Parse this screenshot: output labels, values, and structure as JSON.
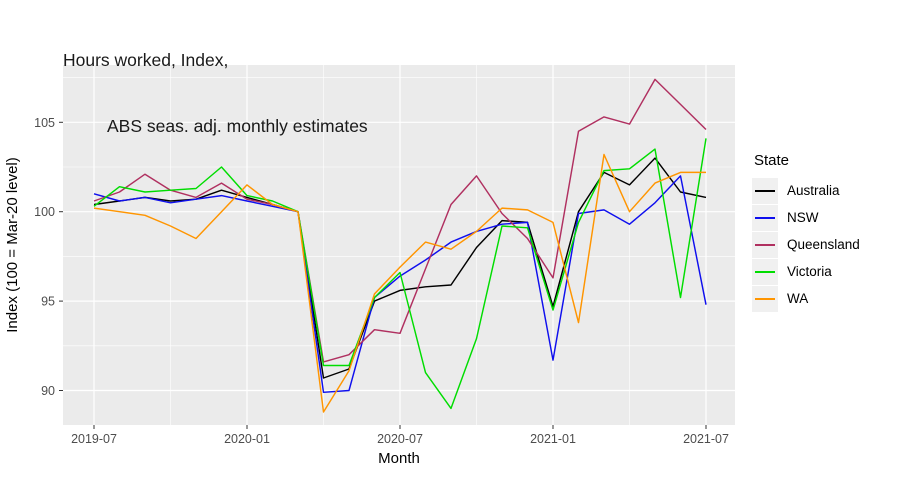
{
  "title": {
    "line1": "Hours worked, Index,",
    "line2": "ABS seas. adj. monthly estimates"
  },
  "chart_data": {
    "type": "line",
    "x": [
      "2019-07",
      "2019-08",
      "2019-09",
      "2019-10",
      "2019-11",
      "2019-12",
      "2020-01",
      "2020-02",
      "2020-03",
      "2020-04",
      "2020-05",
      "2020-06",
      "2020-07",
      "2020-08",
      "2020-09",
      "2020-10",
      "2020-11",
      "2020-12",
      "2021-01",
      "2021-02",
      "2021-03",
      "2021-04",
      "2021-05",
      "2021-06",
      "2021-07"
    ],
    "series": [
      {
        "name": "Australia",
        "color": "#000000",
        "values": [
          100.4,
          100.6,
          100.8,
          100.6,
          100.7,
          101.2,
          100.8,
          100.4,
          100.0,
          90.7,
          91.2,
          95.0,
          95.6,
          95.8,
          95.9,
          98.0,
          99.5,
          99.4,
          94.7,
          100.0,
          102.2,
          101.5,
          103.0,
          101.1,
          100.8
        ]
      },
      {
        "name": "NSW",
        "color": "#0f0fee",
        "values": [
          101.0,
          100.6,
          100.8,
          100.5,
          100.7,
          100.9,
          100.6,
          100.3,
          100.0,
          89.9,
          90.0,
          95.2,
          96.4,
          97.3,
          98.3,
          98.9,
          99.3,
          99.4,
          91.7,
          99.9,
          100.1,
          99.3,
          100.5,
          102.0,
          94.8
        ]
      },
      {
        "name": "Queensland",
        "color": "#b03060",
        "values": [
          100.6,
          101.1,
          102.1,
          101.2,
          100.8,
          101.6,
          100.7,
          100.4,
          100.0,
          91.6,
          92.0,
          93.4,
          93.2,
          96.8,
          100.4,
          102.0,
          99.9,
          98.5,
          96.3,
          104.5,
          105.3,
          104.9,
          107.4,
          106.0,
          104.6
        ]
      },
      {
        "name": "Victoria",
        "color": "#00dd00",
        "values": [
          100.3,
          101.4,
          101.1,
          101.2,
          101.3,
          102.5,
          100.9,
          100.6,
          100.0,
          91.4,
          91.4,
          95.2,
          96.6,
          91.0,
          89.0,
          92.9,
          99.2,
          99.1,
          94.5,
          99.4,
          102.3,
          102.4,
          103.5,
          95.2,
          104.1
        ]
      },
      {
        "name": "WA",
        "color": "#ff9500",
        "values": [
          100.2,
          100.0,
          99.8,
          99.2,
          98.5,
          100.0,
          101.5,
          100.4,
          100.0,
          88.8,
          91.1,
          95.4,
          96.9,
          98.3,
          97.9,
          98.9,
          100.2,
          100.1,
          99.4,
          93.8,
          103.2,
          100.0,
          101.6,
          102.2,
          102.2
        ]
      }
    ],
    "xlabel": "Month",
    "ylabel": "Index (100 = Mar-20 level)",
    "x_tick_labels": [
      "2019-07",
      "2020-01",
      "2020-07",
      "2021-01",
      "2021-07"
    ],
    "x_tick_indices": [
      0,
      6,
      12,
      18,
      24
    ],
    "x_minor_indices": [
      3,
      9,
      15,
      21
    ],
    "y_ticks": [
      90,
      95,
      100,
      105
    ],
    "y_minor_ticks": [
      92.5,
      97.5,
      102.5,
      107.5
    ],
    "ylim": [
      88.1,
      108.2
    ],
    "grid": "white major+minor on gray panel",
    "legend": {
      "title": "State",
      "position": "right"
    },
    "panel_bg": "#ebebeb",
    "grid_color": "#ffffff",
    "tick_text_color": "#4d4d4d",
    "tick_mark_color": "#333333"
  }
}
